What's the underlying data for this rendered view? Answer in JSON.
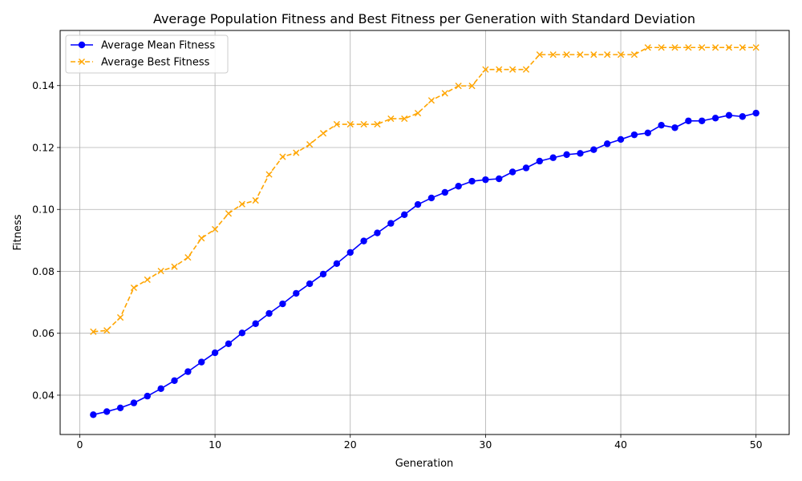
{
  "chart_data": {
    "type": "line",
    "title": "Average Population Fitness and Best Fitness per Generation with Standard Deviation",
    "xlabel": "Generation",
    "ylabel": "Fitness",
    "xlim": [
      -1.45,
      52.45
    ],
    "ylim": [
      0.0273,
      0.1578
    ],
    "xticks": [
      0,
      10,
      20,
      30,
      40,
      50
    ],
    "xtick_labels": [
      "0",
      "10",
      "20",
      "30",
      "40",
      "50"
    ],
    "yticks": [
      0.04,
      0.06,
      0.08,
      0.1,
      0.12,
      0.14
    ],
    "ytick_labels": [
      "0.04",
      "0.06",
      "0.08",
      "0.10",
      "0.12",
      "0.14"
    ],
    "grid": true,
    "legend_position": "upper-left",
    "x": [
      1,
      2,
      3,
      4,
      5,
      6,
      7,
      8,
      9,
      10,
      11,
      12,
      13,
      14,
      15,
      16,
      17,
      18,
      19,
      20,
      21,
      22,
      23,
      24,
      25,
      26,
      27,
      28,
      29,
      30,
      31,
      32,
      33,
      34,
      35,
      36,
      37,
      38,
      39,
      40,
      41,
      42,
      43,
      44,
      45,
      46,
      47,
      48,
      49,
      50
    ],
    "series": [
      {
        "name": "Average Mean Fitness",
        "color": "#0000ff",
        "line_style": "solid",
        "marker": "circle",
        "values": [
          0.0337,
          0.0347,
          0.0359,
          0.0375,
          0.0397,
          0.0421,
          0.0447,
          0.0476,
          0.0507,
          0.0537,
          0.0566,
          0.0601,
          0.0631,
          0.0664,
          0.0695,
          0.0729,
          0.076,
          0.0791,
          0.0825,
          0.0861,
          0.0898,
          0.0924,
          0.0955,
          0.0983,
          0.1016,
          0.1037,
          0.1055,
          0.1075,
          0.1091,
          0.1096,
          0.1099,
          0.1121,
          0.1134,
          0.1156,
          0.1167,
          0.1177,
          0.1181,
          0.1193,
          0.1212,
          0.1226,
          0.1241,
          0.1247,
          0.1272,
          0.1264,
          0.1286,
          0.1286,
          0.1295,
          0.1304,
          0.13,
          0.1311
        ]
      },
      {
        "name": "Average Best Fitness",
        "color": "#ffa500",
        "line_style": "dashed",
        "marker": "x",
        "values": [
          0.0605,
          0.0609,
          0.0651,
          0.0747,
          0.0773,
          0.0801,
          0.0815,
          0.0845,
          0.0907,
          0.0936,
          0.0987,
          0.1017,
          0.1029,
          0.1113,
          0.117,
          0.1183,
          0.121,
          0.1246,
          0.1275,
          0.1275,
          0.1275,
          0.1275,
          0.1293,
          0.1293,
          0.1311,
          0.1352,
          0.1375,
          0.1399,
          0.1399,
          0.1452,
          0.1452,
          0.1452,
          0.1452,
          0.15,
          0.15,
          0.15,
          0.15,
          0.15,
          0.15,
          0.15,
          0.15,
          0.1523,
          0.1523,
          0.1523,
          0.1523,
          0.1523,
          0.1523,
          0.1523,
          0.1523,
          0.1523
        ]
      }
    ]
  }
}
